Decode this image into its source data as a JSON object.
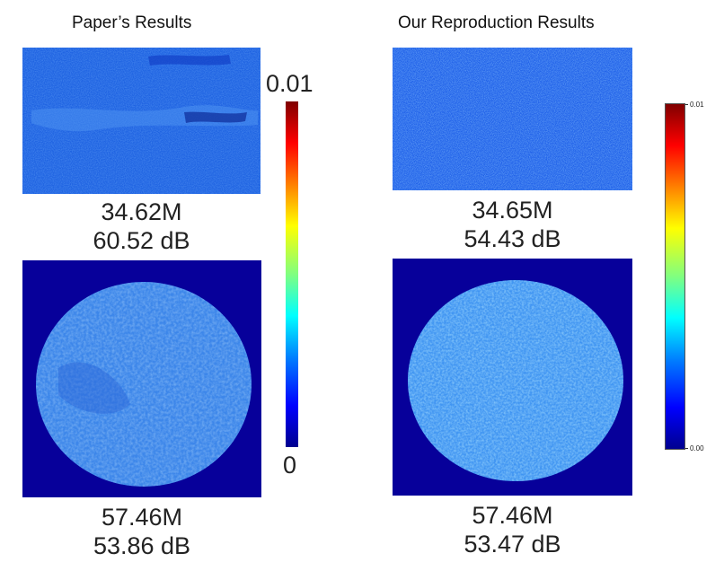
{
  "left": {
    "heading": "Paper’s Results",
    "top_image": {
      "caption_line1": "34.62M",
      "caption_line2": "60.52 dB"
    },
    "bottom_image": {
      "caption_line1": "57.46M",
      "caption_line2": "53.86 dB"
    },
    "colorbar": {
      "max_label": "0.01",
      "min_label": "0"
    }
  },
  "right": {
    "heading": "Our Reproduction Results",
    "top_image": {
      "caption_line1": "34.65M",
      "caption_line2": "54.43 dB"
    },
    "bottom_image": {
      "caption_line1": "57.46M",
      "caption_line2": "53.47 dB"
    },
    "colorbar": {
      "max_label": "0.01",
      "min_label": "0.00"
    }
  },
  "colors": {
    "background_blue": "#1a5fe0",
    "deep_blue": "#07009a",
    "sphere_blue": "#3f8ff0"
  }
}
